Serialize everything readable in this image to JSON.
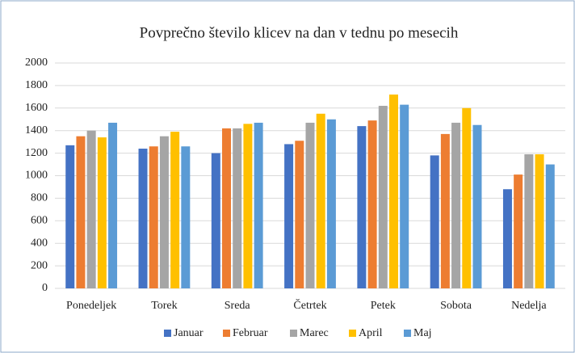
{
  "chart_data": {
    "type": "bar",
    "title": "Povprečno število klicev na dan v tednu po mesecih",
    "categories": [
      "Ponedeljek",
      "Torek",
      "Sreda",
      "Četrtek",
      "Petek",
      "Sobota",
      "Nedelja"
    ],
    "series": [
      {
        "name": "Januar",
        "color": "#4472c4",
        "values": [
          1270,
          1240,
          1200,
          1280,
          1440,
          1180,
          880
        ]
      },
      {
        "name": "Februar",
        "color": "#ed7d31",
        "values": [
          1350,
          1260,
          1420,
          1310,
          1490,
          1370,
          1010
        ]
      },
      {
        "name": "Marec",
        "color": "#a5a5a5",
        "values": [
          1400,
          1350,
          1420,
          1470,
          1620,
          1470,
          1190
        ]
      },
      {
        "name": "April",
        "color": "#ffc000",
        "values": [
          1340,
          1390,
          1460,
          1550,
          1720,
          1600,
          1190
        ]
      },
      {
        "name": "Maj",
        "color": "#5b9bd5",
        "values": [
          1470,
          1260,
          1470,
          1500,
          1630,
          1450,
          1100
        ]
      }
    ],
    "ylim": [
      0,
      2000
    ],
    "yticks": [
      0,
      200,
      400,
      600,
      800,
      1000,
      1200,
      1400,
      1600,
      1800,
      2000
    ],
    "grid": true,
    "legend": "bottom"
  }
}
